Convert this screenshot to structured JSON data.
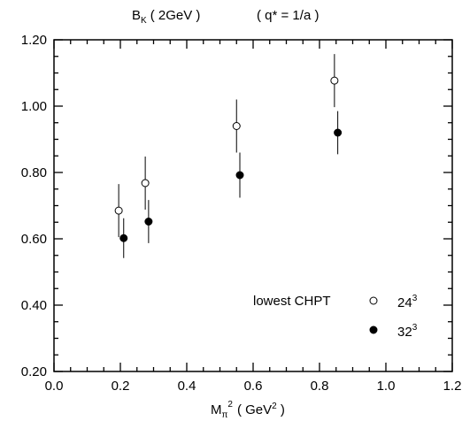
{
  "chart_data": {
    "type": "scatter",
    "title": {
      "main": "B",
      "main_sub": "K",
      "scale": "( 2GeV )",
      "qstar": "( q* = 1/a )"
    },
    "xlabel": {
      "main": "M",
      "sub": "π",
      "sup": "2",
      "unit_open": "( GeV",
      "unit_sup": "2",
      "unit_close": " )"
    },
    "ylabel": "",
    "xlim": [
      0.0,
      1.2
    ],
    "ylim": [
      0.2,
      1.2
    ],
    "x_ticks": [
      "0.0",
      "0.2",
      "0.4",
      "0.6",
      "0.8",
      "1.0",
      "1.2"
    ],
    "y_ticks": [
      "0.20",
      "0.40",
      "0.60",
      "0.80",
      "1.00",
      "1.20"
    ],
    "grid": false,
    "legend": {
      "placement": "bottom-right",
      "prefix": "lowest CHPT",
      "entries": [
        {
          "base": "24",
          "sup": "3",
          "marker": "open-circle"
        },
        {
          "base": "32",
          "sup": "3",
          "marker": "filled-circle"
        }
      ]
    },
    "series": [
      {
        "marker": "open-circle",
        "points": [
          {
            "x": 0.195,
            "y": 0.685,
            "err_low": 0.08,
            "err_high": 0.08
          },
          {
            "x": 0.275,
            "y": 0.768,
            "err_low": 0.08,
            "err_high": 0.08
          },
          {
            "x": 0.55,
            "y": 0.94,
            "err_low": 0.08,
            "err_high": 0.08
          },
          {
            "x": 0.845,
            "y": 1.077,
            "err_low": 0.08,
            "err_high": 0.08
          }
        ]
      },
      {
        "marker": "filled-circle",
        "points": [
          {
            "x": 0.21,
            "y": 0.602,
            "err_low": 0.06,
            "err_high": 0.06
          },
          {
            "x": 0.285,
            "y": 0.652,
            "err_low": 0.065,
            "err_high": 0.065
          },
          {
            "x": 0.56,
            "y": 0.792,
            "err_low": 0.068,
            "err_high": 0.068
          },
          {
            "x": 0.855,
            "y": 0.92,
            "err_low": 0.065,
            "err_high": 0.065
          }
        ]
      }
    ]
  }
}
